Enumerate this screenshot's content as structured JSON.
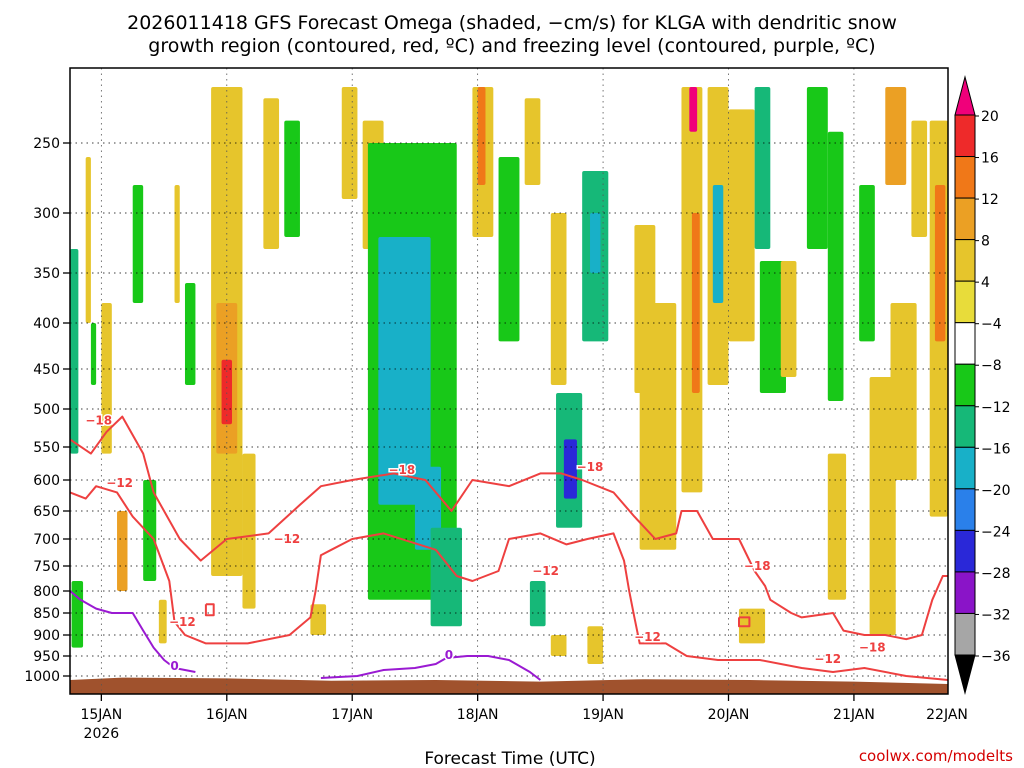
{
  "chart_data": {
    "type": "heatmap",
    "title_line1": "2026011418 GFS Forecast Omega (shaded, −cm/s) for KLGA with dendritic snow",
    "title_line2": "growth region (contoured, red, ºC) and freezing level (contoured, purple, ºC)",
    "xlabel": "Forecast Time (UTC)",
    "credit": "coolwx.com/modelts",
    "x_range_hours": [
      0,
      168
    ],
    "x_ticks": [
      {
        "label": "15JAN",
        "sub": "2026",
        "hour": 6
      },
      {
        "label": "16JAN",
        "sub": "",
        "hour": 30
      },
      {
        "label": "17JAN",
        "sub": "",
        "hour": 54
      },
      {
        "label": "18JAN",
        "sub": "",
        "hour": 78
      },
      {
        "label": "19JAN",
        "sub": "",
        "hour": 102
      },
      {
        "label": "20JAN",
        "sub": "",
        "hour": 126
      },
      {
        "label": "21JAN",
        "sub": "",
        "hour": 150
      },
      {
        "label": "22JAN",
        "sub": "",
        "hour": 174
      }
    ],
    "y_axis": "pressure (hPa)",
    "y_ticks": [
      250,
      300,
      350,
      400,
      450,
      500,
      550,
      600,
      650,
      700,
      750,
      800,
      850,
      900,
      950,
      1000
    ],
    "y_range": [
      200,
      1020
    ],
    "colorbar": {
      "labels": [
        "20",
        "16",
        "12",
        "8",
        "4",
        "−4",
        "−8",
        "−12",
        "−16",
        "−20",
        "−24",
        "−28",
        "−32",
        "−36"
      ],
      "colors": [
        "#f0007a",
        "#ee2a2a",
        "#f07818",
        "#eba024",
        "#e6c52c",
        "#e8dc3a",
        "#ffffff",
        "#18c818",
        "#16b878",
        "#18b0c8",
        "#2a80ea",
        "#2a28d8",
        "#8a14c8",
        "#a6a6a6",
        "#000000"
      ]
    },
    "omega_cells": [
      {
        "h0": 0,
        "h1": 1.6,
        "p0": 330,
        "p1": 560,
        "v": -10
      },
      {
        "h0": 0.3,
        "h1": 2.5,
        "p0": 780,
        "p1": 930,
        "v": -6
      },
      {
        "h0": 3,
        "h1": 4,
        "p0": 260,
        "p1": 400,
        "v": 5
      },
      {
        "h0": 6,
        "h1": 8,
        "p0": 380,
        "p1": 560,
        "v": 6
      },
      {
        "h0": 9,
        "h1": 11,
        "p0": 650,
        "p1": 800,
        "v": 9
      },
      {
        "h0": 4,
        "h1": 5,
        "p0": 400,
        "p1": 470,
        "v": -6
      },
      {
        "h0": 12,
        "h1": 14,
        "p0": 280,
        "p1": 380,
        "v": -7
      },
      {
        "h0": 14,
        "h1": 16.5,
        "p0": 600,
        "p1": 780,
        "v": -6
      },
      {
        "h0": 17,
        "h1": 18.5,
        "p0": 820,
        "p1": 920,
        "v": 5
      },
      {
        "h0": 20,
        "h1": 21,
        "p0": 280,
        "p1": 380,
        "v": 5
      },
      {
        "h0": 22,
        "h1": 24,
        "p0": 360,
        "p1": 470,
        "v": -5
      },
      {
        "h0": 27,
        "h1": 33,
        "p0": 200,
        "p1": 770,
        "v": 7
      },
      {
        "h0": 28,
        "h1": 32,
        "p0": 380,
        "p1": 560,
        "v": 11
      },
      {
        "h0": 29,
        "h1": 31,
        "p0": 440,
        "p1": 520,
        "v": 16
      },
      {
        "h0": 33,
        "h1": 35.5,
        "p0": 560,
        "p1": 840,
        "v": 6
      },
      {
        "h0": 37,
        "h1": 40,
        "p0": 210,
        "p1": 330,
        "v": 5
      },
      {
        "h0": 41,
        "h1": 44,
        "p0": 230,
        "p1": 320,
        "v": -5
      },
      {
        "h0": 46,
        "h1": 49,
        "p0": 830,
        "p1": 900,
        "v": 5
      },
      {
        "h0": 52,
        "h1": 55,
        "p0": 200,
        "p1": 290,
        "v": 6
      },
      {
        "h0": 56,
        "h1": 60,
        "p0": 230,
        "p1": 330,
        "v": 5
      },
      {
        "h0": 57,
        "h1": 74,
        "p0": 250,
        "p1": 820,
        "v": -7
      },
      {
        "h0": 59,
        "h1": 69,
        "p0": 320,
        "p1": 640,
        "v": -12
      },
      {
        "h0": 62,
        "h1": 66,
        "p0": 460,
        "p1": 580,
        "v": -15
      },
      {
        "h0": 66,
        "h1": 71,
        "p0": 580,
        "p1": 720,
        "v": -12
      },
      {
        "h0": 69,
        "h1": 75,
        "p0": 680,
        "p1": 880,
        "v": -8
      },
      {
        "h0": 77,
        "h1": 81,
        "p0": 200,
        "p1": 320,
        "v": 6
      },
      {
        "h0": 78,
        "h1": 79.5,
        "p0": 200,
        "p1": 280,
        "v": 13
      },
      {
        "h0": 82,
        "h1": 86,
        "p0": 260,
        "p1": 420,
        "v": -6
      },
      {
        "h0": 87,
        "h1": 90,
        "p0": 210,
        "p1": 280,
        "v": 5
      },
      {
        "h0": 92,
        "h1": 95,
        "p0": 300,
        "p1": 470,
        "v": 6
      },
      {
        "h0": 88,
        "h1": 91,
        "p0": 780,
        "p1": 880,
        "v": -8
      },
      {
        "h0": 93,
        "h1": 98,
        "p0": 480,
        "p1": 680,
        "v": -10
      },
      {
        "h0": 94.5,
        "h1": 97,
        "p0": 540,
        "p1": 630,
        "v": -22
      },
      {
        "h0": 98,
        "h1": 103,
        "p0": 270,
        "p1": 420,
        "v": -8
      },
      {
        "h0": 99.5,
        "h1": 101.5,
        "p0": 300,
        "p1": 350,
        "v": -12
      },
      {
        "h0": 99,
        "h1": 102,
        "p0": 880,
        "p1": 970,
        "v": 5
      },
      {
        "h0": 92,
        "h1": 95,
        "p0": 900,
        "p1": 950,
        "v": 5
      },
      {
        "h0": 108,
        "h1": 112,
        "p0": 310,
        "p1": 480,
        "v": 6
      },
      {
        "h0": 109,
        "h1": 116,
        "p0": 380,
        "p1": 720,
        "v": 6
      },
      {
        "h0": 117,
        "h1": 121,
        "p0": 200,
        "p1": 620,
        "v": 7
      },
      {
        "h0": 118.5,
        "h1": 120,
        "p0": 200,
        "p1": 240,
        "v": 20
      },
      {
        "h0": 119,
        "h1": 120.5,
        "p0": 300,
        "p1": 480,
        "v": 13
      },
      {
        "h0": 122,
        "h1": 126,
        "p0": 200,
        "p1": 470,
        "v": 5
      },
      {
        "h0": 123,
        "h1": 125,
        "p0": 280,
        "p1": 380,
        "v": -12
      },
      {
        "h0": 126,
        "h1": 131,
        "p0": 220,
        "p1": 420,
        "v": 5
      },
      {
        "h0": 131,
        "h1": 134,
        "p0": 200,
        "p1": 330,
        "v": -8
      },
      {
        "h0": 132,
        "h1": 137,
        "p0": 340,
        "p1": 480,
        "v": -6
      },
      {
        "h0": 136,
        "h1": 139,
        "p0": 340,
        "p1": 460,
        "v": 5
      },
      {
        "h0": 128,
        "h1": 133,
        "p0": 840,
        "p1": 920,
        "v": 5
      },
      {
        "h0": 141,
        "h1": 145,
        "p0": 200,
        "p1": 330,
        "v": -6
      },
      {
        "h0": 145,
        "h1": 148,
        "p0": 240,
        "p1": 490,
        "v": -6
      },
      {
        "h0": 145,
        "h1": 148.5,
        "p0": 560,
        "p1": 820,
        "v": 6
      },
      {
        "h0": 151,
        "h1": 154,
        "p0": 280,
        "p1": 420,
        "v": -5
      },
      {
        "h0": 153,
        "h1": 158,
        "p0": 460,
        "p1": 900,
        "v": 6
      },
      {
        "h0": 157,
        "h1": 162,
        "p0": 380,
        "p1": 600,
        "v": 6
      },
      {
        "h0": 156,
        "h1": 160,
        "p0": 200,
        "p1": 280,
        "v": 9
      },
      {
        "h0": 161,
        "h1": 164,
        "p0": 230,
        "p1": 320,
        "v": 5
      },
      {
        "h0": 164.5,
        "h1": 168,
        "p0": 230,
        "p1": 660,
        "v": 7
      },
      {
        "h0": 165.5,
        "h1": 167.5,
        "p0": 280,
        "p1": 420,
        "v": 12
      }
    ],
    "dgz_contours": [
      {
        "label": "−18",
        "label_h": 5.5,
        "label_p": 515,
        "points": [
          [
            0,
            540
          ],
          [
            4,
            560
          ],
          [
            7,
            530
          ],
          [
            10,
            510
          ],
          [
            14,
            560
          ],
          [
            16,
            620
          ],
          [
            21,
            700
          ],
          [
            25,
            740
          ],
          [
            30,
            700
          ],
          [
            38,
            690
          ],
          [
            44,
            640
          ],
          [
            48,
            610
          ],
          [
            54,
            600
          ],
          [
            62,
            590
          ],
          [
            68,
            600
          ],
          [
            73,
            650
          ],
          [
            77,
            600
          ],
          [
            84,
            610
          ],
          [
            90,
            590
          ],
          [
            94,
            590
          ],
          [
            98,
            600
          ],
          [
            104,
            620
          ],
          [
            108,
            660
          ],
          [
            112,
            700
          ],
          [
            116,
            690
          ],
          [
            117,
            650
          ],
          [
            120,
            650
          ],
          [
            123,
            700
          ],
          [
            128,
            700
          ],
          [
            131,
            760
          ],
          [
            133,
            790
          ],
          [
            134,
            820
          ],
          [
            138,
            850
          ],
          [
            140,
            860
          ],
          [
            146,
            850
          ],
          [
            148,
            890
          ],
          [
            152,
            900
          ],
          [
            156,
            900
          ],
          [
            160,
            910
          ],
          [
            163,
            900
          ],
          [
            165,
            820
          ],
          [
            167,
            770
          ],
          [
            168,
            770
          ]
        ]
      },
      {
        "label": "−12",
        "label_h": 9.5,
        "label_p": 605,
        "points": [
          [
            0,
            620
          ],
          [
            3,
            630
          ],
          [
            5,
            610
          ],
          [
            9,
            620
          ],
          [
            12,
            660
          ],
          [
            16,
            700
          ],
          [
            19,
            780
          ],
          [
            20,
            870
          ],
          [
            22,
            900
          ],
          [
            26,
            920
          ],
          [
            34,
            920
          ],
          [
            42,
            900
          ],
          [
            46,
            860
          ],
          [
            47,
            800
          ],
          [
            48,
            730
          ],
          [
            50,
            720
          ],
          [
            54,
            700
          ],
          [
            60,
            690
          ],
          [
            70,
            720
          ],
          [
            74,
            770
          ],
          [
            77,
            780
          ],
          [
            82,
            760
          ],
          [
            84,
            700
          ],
          [
            90,
            690
          ],
          [
            95,
            710
          ],
          [
            99,
            700
          ],
          [
            104,
            690
          ],
          [
            106,
            740
          ],
          [
            107,
            800
          ],
          [
            108,
            860
          ],
          [
            109,
            920
          ],
          [
            114,
            920
          ],
          [
            118,
            950
          ],
          [
            124,
            960
          ],
          [
            132,
            960
          ],
          [
            140,
            980
          ],
          [
            146,
            990
          ],
          [
            152,
            980
          ],
          [
            160,
            1000
          ],
          [
            168,
            1010
          ]
        ]
      }
    ],
    "dgz_extra_labels": [
      {
        "text": "−12",
        "h": 21.5,
        "p": 870
      },
      {
        "text": "−12",
        "h": 41.5,
        "p": 700
      },
      {
        "text": "−12",
        "h": 91,
        "p": 760
      },
      {
        "text": "−12",
        "h": 110.5,
        "p": 905
      },
      {
        "text": "−18",
        "h": 63.5,
        "p": 585
      },
      {
        "text": "−18",
        "h": 99.5,
        "p": 580
      },
      {
        "text": "−18",
        "h": 131.5,
        "p": 750
      },
      {
        "text": "−12",
        "h": 145,
        "p": 958
      },
      {
        "text": "−18",
        "h": 153.5,
        "p": 930
      }
    ],
    "freezing_contours": [
      {
        "label": "0",
        "label_h": 20,
        "label_p": 975,
        "points": [
          [
            0,
            800
          ],
          [
            2,
            820
          ],
          [
            5,
            840
          ],
          [
            8,
            850
          ],
          [
            12,
            850
          ],
          [
            14,
            890
          ],
          [
            16,
            930
          ],
          [
            18,
            960
          ],
          [
            20,
            980
          ],
          [
            24,
            990
          ]
        ]
      },
      {
        "label": "0",
        "label_h": 72.5,
        "label_p": 948,
        "points": [
          [
            48,
            1005
          ],
          [
            55,
            1000
          ],
          [
            60,
            985
          ],
          [
            66,
            980
          ],
          [
            70,
            970
          ],
          [
            72,
            955
          ],
          [
            76,
            950
          ],
          [
            80,
            950
          ],
          [
            84,
            960
          ],
          [
            88,
            990
          ],
          [
            90,
            1010
          ]
        ]
      }
    ]
  }
}
